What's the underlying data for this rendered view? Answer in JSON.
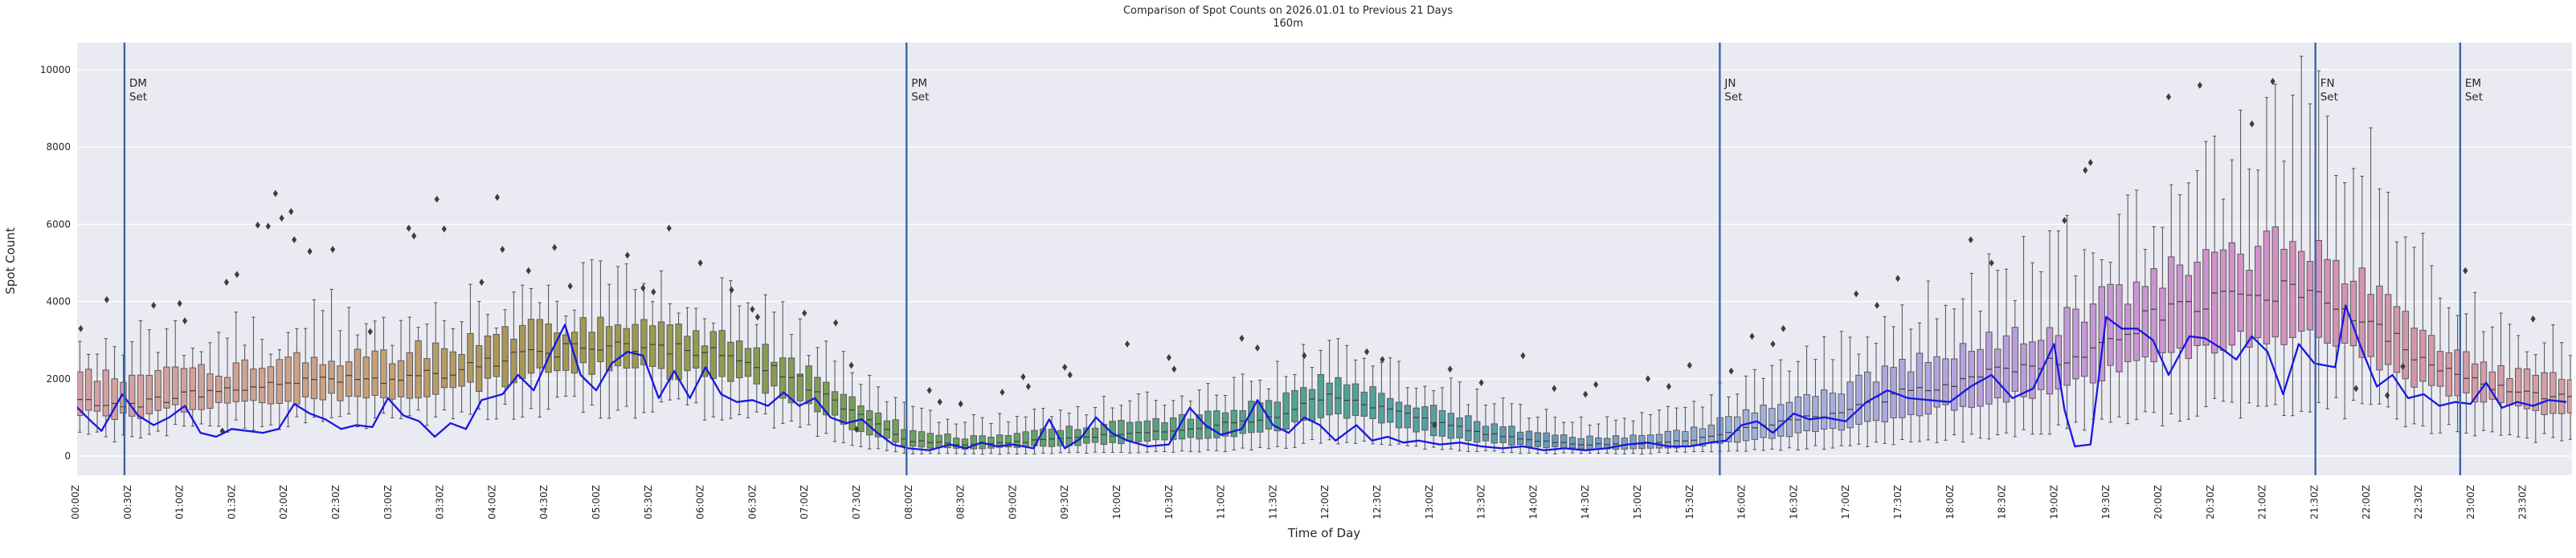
{
  "title": {
    "line1": "Comparison of Spot Counts on 2026.01.01 to Previous 21 Days",
    "line2": "160m"
  },
  "axes": {
    "xlabel": "Time of Day",
    "ylabel": "Spot Count",
    "yticks": [
      0,
      2000,
      4000,
      6000,
      8000,
      10000
    ],
    "ylim": [
      -500,
      10700
    ],
    "xticks": [
      "00:00Z",
      "00:30Z",
      "01:00Z",
      "01:30Z",
      "02:00Z",
      "02:30Z",
      "03:00Z",
      "03:30Z",
      "04:00Z",
      "04:30Z",
      "05:00Z",
      "05:30Z",
      "06:00Z",
      "06:30Z",
      "07:00Z",
      "07:30Z",
      "08:00Z",
      "08:30Z",
      "09:00Z",
      "09:30Z",
      "10:00Z",
      "10:30Z",
      "11:00Z",
      "11:30Z",
      "12:00Z",
      "12:30Z",
      "13:00Z",
      "13:30Z",
      "14:00Z",
      "14:30Z",
      "15:00Z",
      "15:30Z",
      "16:00Z",
      "16:30Z",
      "17:00Z",
      "17:30Z",
      "18:00Z",
      "18:30Z",
      "19:00Z",
      "19:30Z",
      "20:00Z",
      "20:30Z",
      "21:00Z",
      "21:30Z",
      "22:00Z",
      "22:30Z",
      "23:00Z",
      "23:30Z"
    ]
  },
  "style_colors": {
    "figure_bg": "#ffffff",
    "axes_bg": "#eaeaf2",
    "grid": "#ffffff",
    "text": "#262626",
    "box_edge": "#5d5b5e",
    "whisker": "#4f4f4f",
    "outlier": "#3d3d3d",
    "current_day_line": "#1717e3",
    "event_line": "#3a66a6"
  },
  "chart_data": {
    "type": "boxplot+line",
    "box_interval_minutes": 5,
    "description": "Box plots of spot counts per 5-minute bin over previous 21 days, colored cyclically by time of day; blue line = counts on 2026.01.01; vertical lines = set events.",
    "anchors": {
      "t_hours": [
        0,
        0.5,
        1,
        1.5,
        2,
        2.5,
        3,
        3.5,
        4,
        4.5,
        5,
        5.5,
        6,
        6.5,
        7,
        7.5,
        8,
        8.5,
        9,
        9.5,
        10,
        10.5,
        11,
        11.5,
        12,
        12.5,
        13,
        13.5,
        14,
        14.5,
        15,
        15.5,
        16,
        16.5,
        17,
        17.5,
        18,
        18.5,
        19,
        19.5,
        20,
        20.5,
        21,
        21.5,
        22,
        22.5,
        23,
        23.5,
        24
      ],
      "median": [
        1450,
        1300,
        1550,
        1700,
        1900,
        2000,
        2000,
        2100,
        2400,
        2700,
        2900,
        2900,
        2700,
        2400,
        1900,
        1100,
        400,
        300,
        350,
        450,
        550,
        650,
        800,
        1000,
        1600,
        1300,
        900,
        600,
        400,
        300,
        300,
        400,
        700,
        900,
        1200,
        1600,
        1900,
        2200,
        2400,
        3000,
        3700,
        4000,
        4300,
        4300,
        3500,
        2600,
        2000,
        1600,
        1500
      ],
      "q1": [
        1150,
        1000,
        1250,
        1300,
        1450,
        1500,
        1600,
        1700,
        1900,
        2100,
        2300,
        2200,
        2100,
        1900,
        1400,
        700,
        250,
        180,
        220,
        280,
        350,
        400,
        500,
        650,
        1100,
        900,
        600,
        380,
        250,
        180,
        180,
        250,
        400,
        550,
        750,
        1000,
        1250,
        1500,
        1650,
        2100,
        2600,
        2900,
        3100,
        3100,
        2500,
        1900,
        1500,
        1200,
        1150
      ],
      "q3": [
        2050,
        2100,
        2150,
        2250,
        2450,
        2550,
        2600,
        2800,
        3000,
        3300,
        3400,
        3300,
        3100,
        2800,
        2300,
        1500,
        650,
        480,
        550,
        700,
        850,
        950,
        1150,
        1400,
        2000,
        1700,
        1250,
        850,
        600,
        480,
        500,
        650,
        1100,
        1400,
        1800,
        2300,
        2700,
        3000,
        3300,
        4100,
        4700,
        5000,
        5400,
        5500,
        4400,
        3300,
        2600,
        2100,
        2000
      ],
      "whisker_low": [
        550,
        450,
        700,
        800,
        850,
        900,
        950,
        1000,
        1100,
        1200,
        1300,
        1300,
        1200,
        1000,
        700,
        250,
        80,
        50,
        60,
        80,
        100,
        120,
        150,
        200,
        400,
        300,
        200,
        120,
        80,
        60,
        60,
        100,
        150,
        200,
        250,
        350,
        450,
        550,
        650,
        850,
        1000,
        1200,
        1300,
        1400,
        1200,
        800,
        600,
        450,
        500
      ],
      "whisker_high": [
        2900,
        3000,
        3100,
        3200,
        3150,
        3800,
        3300,
        3700,
        3900,
        4300,
        4400,
        4300,
        4100,
        3800,
        3200,
        2300,
        1200,
        900,
        1000,
        1200,
        1400,
        1600,
        1800,
        2100,
        2800,
        2400,
        1900,
        1500,
        1100,
        950,
        1000,
        1300,
        1900,
        2300,
        2900,
        3600,
        4200,
        4700,
        5200,
        5800,
        6600,
        7800,
        8600,
        9200,
        7500,
        5200,
        3900,
        3100,
        2900
      ]
    },
    "hourly_colors": [
      "#d4a0a4",
      "#d2a29a",
      "#cda28b",
      "#c5a077",
      "#ab9757",
      "#a09a52",
      "#929b50",
      "#7f9d53",
      "#6da25c",
      "#60a468",
      "#58a376",
      "#54a487",
      "#52a395",
      "#55a0a3",
      "#619ab3",
      "#7fa0c4",
      "#9fb3d8",
      "#a7abdc",
      "#b3a2dc",
      "#c09ad8",
      "#cc95d1",
      "#d292c6",
      "#d295ad",
      "#d49ba4",
      "#d4a0a4"
    ],
    "current_day_line": {
      "name": "2026.01.01",
      "points": [
        [
          0.0,
          1300
        ],
        [
          0.15,
          900
        ],
        [
          0.25,
          650
        ],
        [
          0.45,
          1600
        ],
        [
          0.6,
          1050
        ],
        [
          0.75,
          800
        ],
        [
          0.9,
          1000
        ],
        [
          1.05,
          1300
        ],
        [
          1.2,
          600
        ],
        [
          1.35,
          500
        ],
        [
          1.5,
          700
        ],
        [
          1.65,
          650
        ],
        [
          1.8,
          600
        ],
        [
          1.95,
          700
        ],
        [
          2.1,
          1350
        ],
        [
          2.25,
          1100
        ],
        [
          2.4,
          950
        ],
        [
          2.55,
          700
        ],
        [
          2.7,
          800
        ],
        [
          2.85,
          750
        ],
        [
          3.0,
          1500
        ],
        [
          3.15,
          1050
        ],
        [
          3.3,
          900
        ],
        [
          3.45,
          500
        ],
        [
          3.6,
          850
        ],
        [
          3.75,
          700
        ],
        [
          3.9,
          1450
        ],
        [
          4.1,
          1600
        ],
        [
          4.25,
          2100
        ],
        [
          4.4,
          1700
        ],
        [
          4.55,
          2600
        ],
        [
          4.7,
          3400
        ],
        [
          4.85,
          2100
        ],
        [
          5.0,
          1700
        ],
        [
          5.15,
          2400
        ],
        [
          5.3,
          2700
        ],
        [
          5.45,
          2600
        ],
        [
          5.6,
          1500
        ],
        [
          5.75,
          2200
        ],
        [
          5.9,
          1500
        ],
        [
          6.05,
          2300
        ],
        [
          6.2,
          1600
        ],
        [
          6.35,
          1400
        ],
        [
          6.5,
          1450
        ],
        [
          6.65,
          1300
        ],
        [
          6.8,
          1650
        ],
        [
          6.95,
          1300
        ],
        [
          7.1,
          1500
        ],
        [
          7.25,
          1000
        ],
        [
          7.4,
          850
        ],
        [
          7.55,
          950
        ],
        [
          7.7,
          600
        ],
        [
          7.85,
          300
        ],
        [
          8.0,
          200
        ],
        [
          8.2,
          150
        ],
        [
          8.4,
          300
        ],
        [
          8.55,
          200
        ],
        [
          8.7,
          350
        ],
        [
          8.85,
          250
        ],
        [
          9.0,
          300
        ],
        [
          9.2,
          200
        ],
        [
          9.35,
          950
        ],
        [
          9.5,
          200
        ],
        [
          9.65,
          450
        ],
        [
          9.8,
          1000
        ],
        [
          9.95,
          600
        ],
        [
          10.1,
          400
        ],
        [
          10.3,
          250
        ],
        [
          10.5,
          300
        ],
        [
          10.7,
          1250
        ],
        [
          10.85,
          800
        ],
        [
          11.0,
          550
        ],
        [
          11.2,
          700
        ],
        [
          11.35,
          1450
        ],
        [
          11.5,
          800
        ],
        [
          11.65,
          600
        ],
        [
          11.8,
          1000
        ],
        [
          11.95,
          800
        ],
        [
          12.1,
          400
        ],
        [
          12.3,
          800
        ],
        [
          12.45,
          400
        ],
        [
          12.6,
          500
        ],
        [
          12.75,
          350
        ],
        [
          12.9,
          400
        ],
        [
          13.1,
          300
        ],
        [
          13.3,
          350
        ],
        [
          13.5,
          250
        ],
        [
          13.7,
          200
        ],
        [
          13.9,
          250
        ],
        [
          14.1,
          150
        ],
        [
          14.3,
          200
        ],
        [
          14.5,
          150
        ],
        [
          14.7,
          200
        ],
        [
          14.9,
          300
        ],
        [
          15.1,
          350
        ],
        [
          15.3,
          250
        ],
        [
          15.5,
          250
        ],
        [
          15.7,
          350
        ],
        [
          15.85,
          400
        ],
        [
          16.0,
          800
        ],
        [
          16.15,
          900
        ],
        [
          16.3,
          600
        ],
        [
          16.5,
          1100
        ],
        [
          16.65,
          950
        ],
        [
          16.8,
          1000
        ],
        [
          17.0,
          900
        ],
        [
          17.2,
          1400
        ],
        [
          17.4,
          1700
        ],
        [
          17.6,
          1500
        ],
        [
          17.8,
          1450
        ],
        [
          18.0,
          1400
        ],
        [
          18.2,
          1800
        ],
        [
          18.4,
          2100
        ],
        [
          18.6,
          1500
        ],
        [
          18.8,
          1750
        ],
        [
          19.0,
          2900
        ],
        [
          19.1,
          1200
        ],
        [
          19.2,
          250
        ],
        [
          19.35,
          300
        ],
        [
          19.5,
          3600
        ],
        [
          19.65,
          3300
        ],
        [
          19.8,
          3300
        ],
        [
          19.95,
          3000
        ],
        [
          20.1,
          2100
        ],
        [
          20.3,
          3100
        ],
        [
          20.45,
          3050
        ],
        [
          20.6,
          2800
        ],
        [
          20.75,
          2500
        ],
        [
          20.9,
          3100
        ],
        [
          21.05,
          2700
        ],
        [
          21.2,
          1600
        ],
        [
          21.35,
          2900
        ],
        [
          21.5,
          2400
        ],
        [
          21.7,
          2300
        ],
        [
          21.8,
          3900
        ],
        [
          21.95,
          2800
        ],
        [
          22.1,
          1800
        ],
        [
          22.25,
          2100
        ],
        [
          22.4,
          1500
        ],
        [
          22.55,
          1600
        ],
        [
          22.7,
          1300
        ],
        [
          22.85,
          1400
        ],
        [
          23.0,
          1350
        ],
        [
          23.15,
          1900
        ],
        [
          23.3,
          1250
        ],
        [
          23.45,
          1400
        ],
        [
          23.6,
          1300
        ],
        [
          23.75,
          1450
        ],
        [
          23.92,
          1400
        ]
      ]
    },
    "outliers": [
      [
        0.05,
        3300
      ],
      [
        0.3,
        4050
      ],
      [
        0.75,
        3900
      ],
      [
        1.0,
        3950
      ],
      [
        1.05,
        3500
      ],
      [
        1.41,
        650
      ],
      [
        1.45,
        4500
      ],
      [
        1.55,
        4700
      ],
      [
        1.75,
        5980
      ],
      [
        1.85,
        5950
      ],
      [
        1.92,
        6800
      ],
      [
        1.98,
        6160
      ],
      [
        2.07,
        6330
      ],
      [
        2.1,
        5600
      ],
      [
        2.25,
        5300
      ],
      [
        2.47,
        5350
      ],
      [
        2.83,
        3220
      ],
      [
        3.2,
        5900
      ],
      [
        3.25,
        5700
      ],
      [
        3.47,
        6650
      ],
      [
        3.54,
        5880
      ],
      [
        3.9,
        4500
      ],
      [
        4.05,
        6700
      ],
      [
        4.1,
        5350
      ],
      [
        4.35,
        4800
      ],
      [
        4.6,
        5400
      ],
      [
        4.75,
        4400
      ],
      [
        5.3,
        5200
      ],
      [
        5.45,
        4350
      ],
      [
        5.55,
        4250
      ],
      [
        5.7,
        5900
      ],
      [
        6.0,
        5000
      ],
      [
        6.3,
        4300
      ],
      [
        6.5,
        3800
      ],
      [
        6.55,
        3600
      ],
      [
        7.0,
        3700
      ],
      [
        7.3,
        3450
      ],
      [
        7.45,
        2350
      ],
      [
        7.5,
        690
      ],
      [
        8.2,
        1700
      ],
      [
        8.3,
        1400
      ],
      [
        8.5,
        1350
      ],
      [
        8.9,
        1650
      ],
      [
        9.1,
        2050
      ],
      [
        9.15,
        1800
      ],
      [
        9.5,
        2300
      ],
      [
        9.55,
        2100
      ],
      [
        10.1,
        2900
      ],
      [
        10.5,
        2550
      ],
      [
        10.55,
        2250
      ],
      [
        11.2,
        3050
      ],
      [
        11.35,
        2800
      ],
      [
        11.8,
        2600
      ],
      [
        12.4,
        2700
      ],
      [
        12.55,
        2500
      ],
      [
        13.05,
        800
      ],
      [
        13.2,
        2250
      ],
      [
        13.5,
        1900
      ],
      [
        13.9,
        2600
      ],
      [
        14.2,
        1750
      ],
      [
        14.5,
        1600
      ],
      [
        14.6,
        1850
      ],
      [
        15.1,
        2000
      ],
      [
        15.3,
        1800
      ],
      [
        15.5,
        2350
      ],
      [
        15.9,
        2200
      ],
      [
        16.1,
        3100
      ],
      [
        16.3,
        2900
      ],
      [
        16.4,
        3300
      ],
      [
        17.1,
        4200
      ],
      [
        17.3,
        3900
      ],
      [
        17.5,
        4600
      ],
      [
        18.2,
        5600
      ],
      [
        18.4,
        5000
      ],
      [
        19.1,
        6100
      ],
      [
        19.3,
        7400
      ],
      [
        19.35,
        7600
      ],
      [
        20.1,
        9300
      ],
      [
        20.4,
        9600
      ],
      [
        20.9,
        8600
      ],
      [
        21.1,
        9700
      ],
      [
        21.9,
        1750
      ],
      [
        22.2,
        1570
      ],
      [
        22.35,
        2320
      ],
      [
        22.95,
        4800
      ],
      [
        23.6,
        3550
      ]
    ],
    "events": [
      {
        "label": "DM Set",
        "time_hours": 0.47
      },
      {
        "label": "PM Set",
        "time_hours": 7.98
      },
      {
        "label": "JN Set",
        "time_hours": 15.79
      },
      {
        "label": "FN Set",
        "time_hours": 21.51
      },
      {
        "label": "EM Set",
        "time_hours": 22.9
      }
    ]
  }
}
